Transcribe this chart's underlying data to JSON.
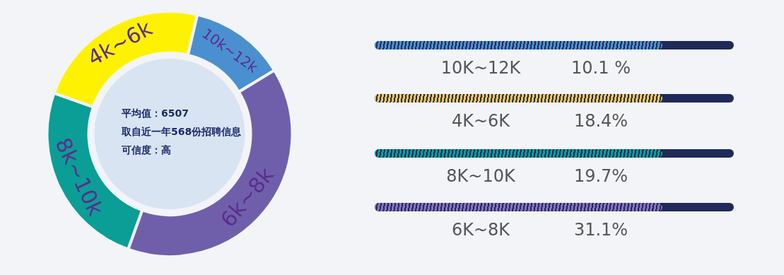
{
  "chart_data": [
    {
      "type": "donut",
      "categories": [
        "10k~12k",
        "6k~8k",
        "8k~10k",
        "4k~6k"
      ],
      "values": [
        12.7,
        39.2,
        24.9,
        23.2
      ],
      "colors": [
        "#4a90d0",
        "#6f5faa",
        "#0a9e96",
        "#fef200"
      ],
      "annotations": [
        "平均值：6507",
        "取自近一年568份招聘信息",
        "可信度：高"
      ],
      "legend": false
    },
    {
      "type": "other",
      "categories": [
        "10K~12K",
        "4K~6K",
        "8K~10K",
        "6K~8K"
      ],
      "value_labels": [
        "10.1 %",
        "18.4%",
        "19.7%",
        "31.1%"
      ],
      "colors": [
        "#4a90d0",
        "#f3c64f",
        "#0a9e96",
        "#8a6fc0"
      ]
    }
  ]
}
